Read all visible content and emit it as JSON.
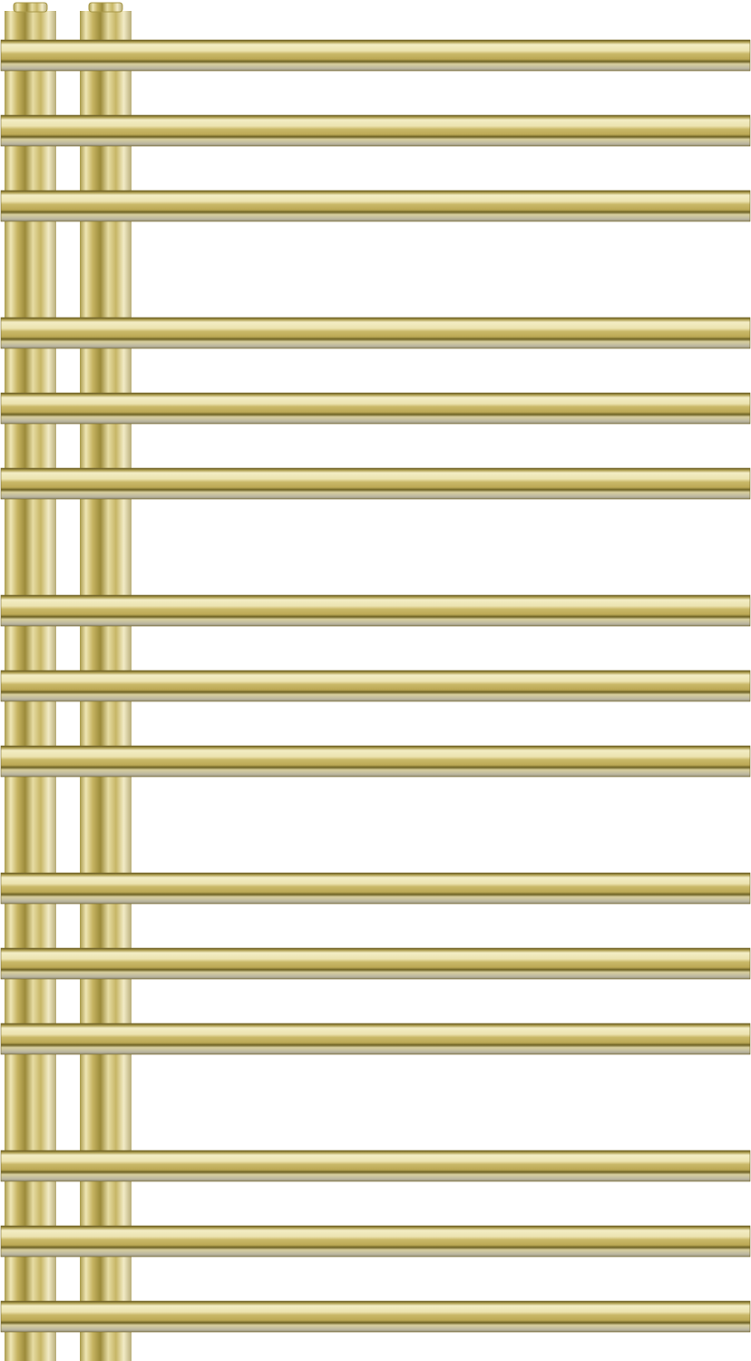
{
  "product": {
    "type": "towel-radiator",
    "finish": "gold",
    "rail_count": 15,
    "rail_groups": [
      3,
      3,
      3,
      3,
      3
    ],
    "vertical_collector_count": 2
  },
  "colors": {
    "background": "#ffffff",
    "gold_light": "#f3edc4",
    "gold_mid": "#c9b868",
    "gold_dark": "#8a7a2c",
    "gold_edge": "#5e5220",
    "shadow_grey": "#bcb7a0"
  }
}
